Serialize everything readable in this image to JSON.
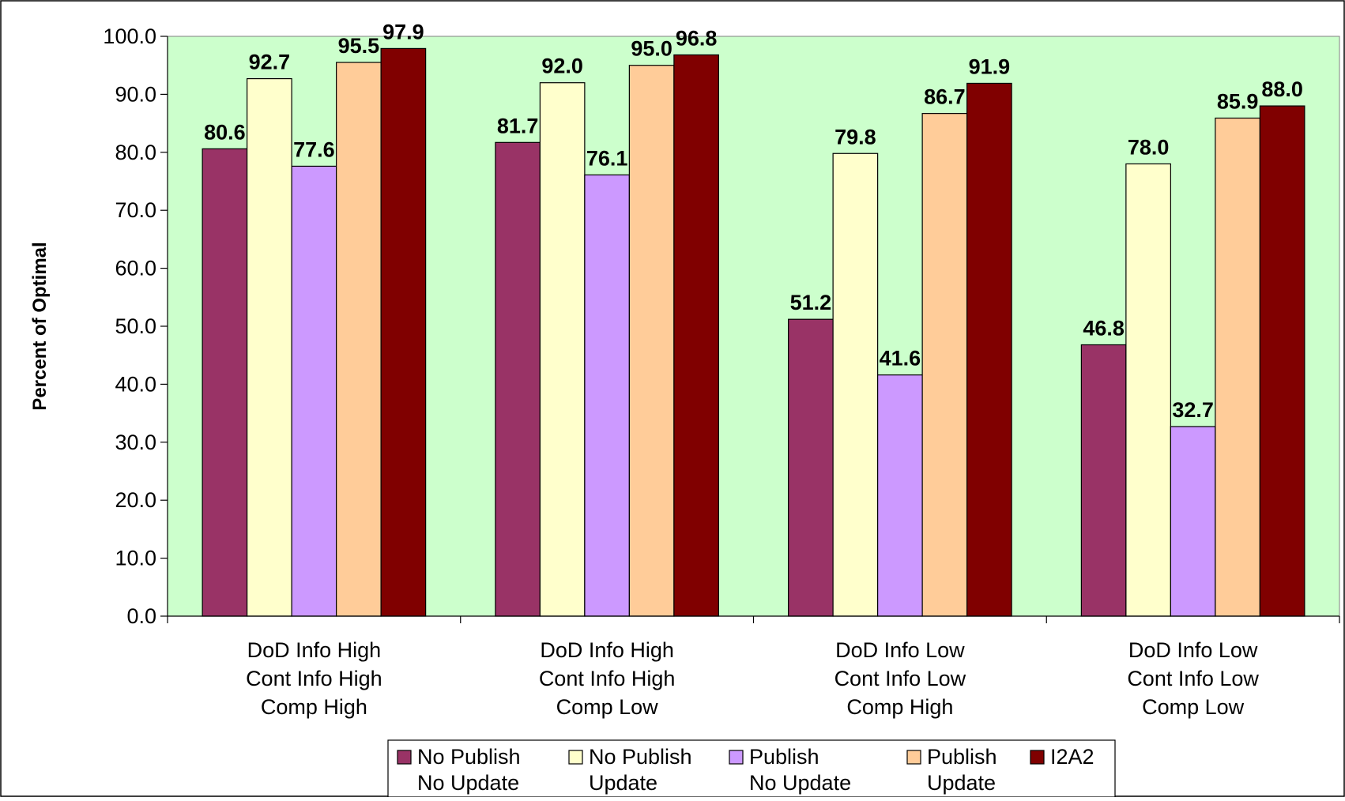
{
  "chart_data": {
    "type": "bar",
    "title": "",
    "xlabel": "",
    "ylabel": "Percent of Optimal",
    "ylim": [
      0,
      100
    ],
    "ytick_step": 10,
    "ytick_labels": [
      "0.0",
      "10.0",
      "20.0",
      "30.0",
      "40.0",
      "50.0",
      "60.0",
      "70.0",
      "80.0",
      "90.0",
      "100.0"
    ],
    "grid": false,
    "legend_position": "bottom",
    "plot_background": "#ccffcc",
    "categories": [
      [
        "DoD Info High",
        "Cont Info High",
        "Comp High"
      ],
      [
        "DoD Info High",
        "Cont Info High",
        "Comp Low"
      ],
      [
        "DoD Info Low",
        "Cont Info Low",
        "Comp High"
      ],
      [
        "DoD Info Low",
        "Cont Info Low",
        "Comp Low"
      ]
    ],
    "series": [
      {
        "name": [
          "No Publish",
          "No Update"
        ],
        "color": "#993366",
        "values": [
          80.6,
          81.7,
          51.2,
          46.8
        ],
        "labels": [
          "80.6",
          "81.7",
          "51.2",
          "46.8"
        ]
      },
      {
        "name": [
          "No Publish",
          "Update"
        ],
        "color": "#ffffcc",
        "values": [
          92.7,
          92.0,
          79.8,
          78.0
        ],
        "labels": [
          "92.7",
          "92.0",
          "79.8",
          "78.0"
        ]
      },
      {
        "name": [
          "Publish",
          "No Update"
        ],
        "color": "#cc99ff",
        "values": [
          77.6,
          76.1,
          41.6,
          32.7
        ],
        "labels": [
          "77.6",
          "76.1",
          "41.6",
          "32.7"
        ]
      },
      {
        "name": [
          "Publish",
          "Update"
        ],
        "color": "#ffcc99",
        "values": [
          95.5,
          95.0,
          86.7,
          85.9
        ],
        "labels": [
          "95.5",
          "95.0",
          "86.7",
          "85.9"
        ]
      },
      {
        "name": [
          "I2A2"
        ],
        "color": "#800000",
        "values": [
          97.9,
          96.8,
          91.9,
          88.0
        ],
        "labels": [
          "97.9",
          "96.8",
          "91.9",
          "88.0"
        ]
      }
    ]
  }
}
